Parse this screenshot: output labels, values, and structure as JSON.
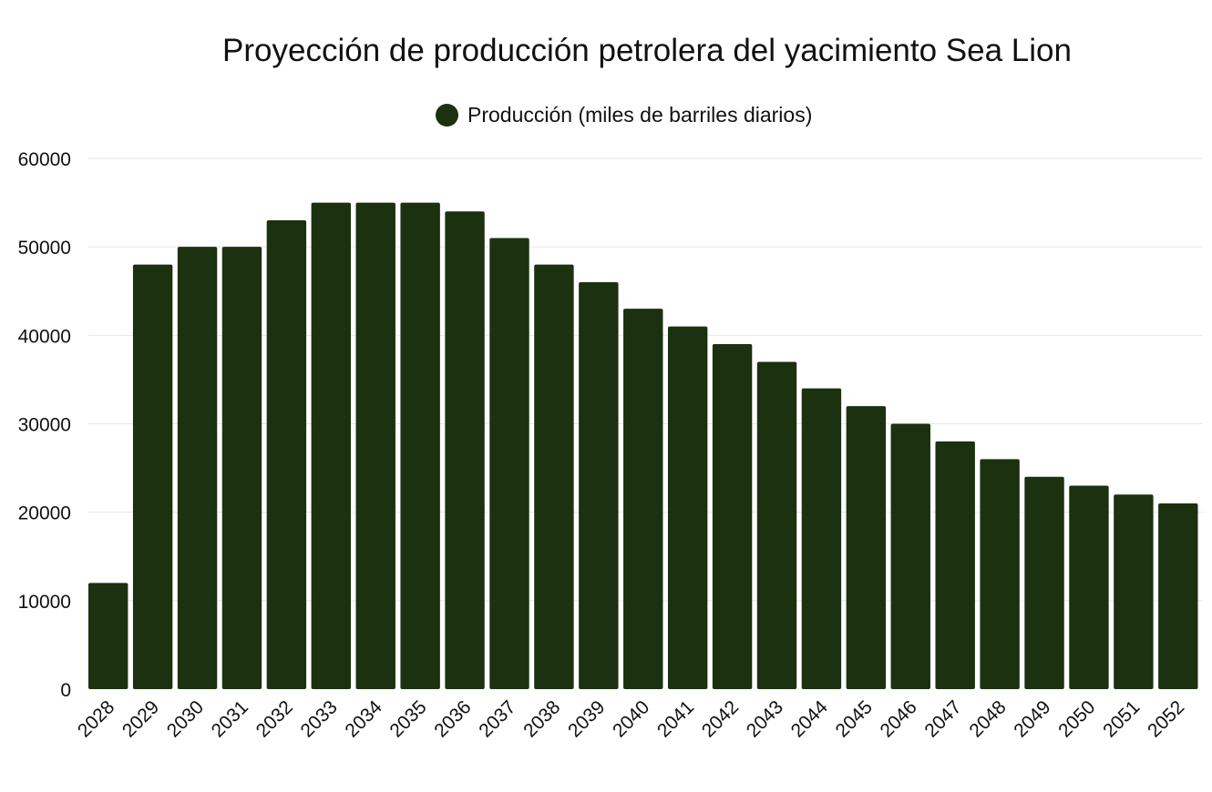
{
  "chart_data": {
    "type": "bar",
    "title": "Proyección de producción petrolera del yacimiento Sea Lion",
    "xlabel": "",
    "ylabel": "",
    "ylim": [
      0,
      60000
    ],
    "yticks": [
      0,
      10000,
      20000,
      30000,
      40000,
      50000,
      60000
    ],
    "grid": true,
    "legend_position": "top-center",
    "categories": [
      "2028",
      "2029",
      "2030",
      "2031",
      "2032",
      "2033",
      "2034",
      "2035",
      "2036",
      "2037",
      "2038",
      "2039",
      "2040",
      "2041",
      "2042",
      "2043",
      "2044",
      "2045",
      "2046",
      "2047",
      "2048",
      "2049",
      "2050",
      "2051",
      "2052"
    ],
    "series": [
      {
        "name": "Producción (miles de barriles diarios)",
        "color": "#1c3110",
        "values": [
          12000,
          48000,
          50000,
          50000,
          53000,
          55000,
          55000,
          55000,
          54000,
          51000,
          48000,
          46000,
          43000,
          41000,
          39000,
          37000,
          34000,
          32000,
          30000,
          28000,
          26000,
          24000,
          23000,
          22000,
          21000
        ]
      }
    ]
  }
}
